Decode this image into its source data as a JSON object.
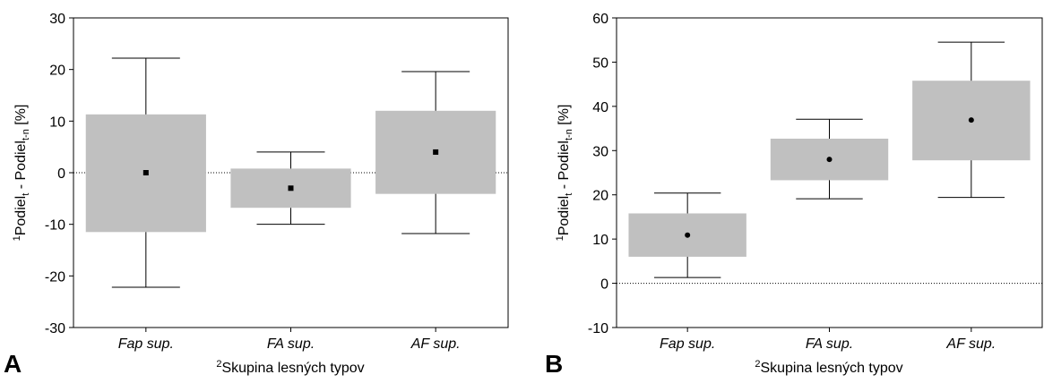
{
  "chart_data": [
    {
      "type": "box",
      "panel_label": "A",
      "categories": [
        "Fap sup.",
        "FA sup.",
        "AF sup."
      ],
      "boxes": [
        {
          "mean": 0,
          "box_low": -11.5,
          "box_high": 11.3,
          "whisker_low": -22.2,
          "whisker_high": 22.2
        },
        {
          "mean": -3,
          "box_low": -6.8,
          "box_high": 0.8,
          "whisker_low": -10,
          "whisker_high": 4
        },
        {
          "mean": 4,
          "box_low": -4.1,
          "box_high": 12,
          "whisker_low": -11.8,
          "whisker_high": 19.6
        }
      ],
      "ylim": [
        -30,
        30
      ],
      "yticks": [
        "-30",
        "-20",
        "-10",
        "0",
        "10",
        "20",
        "30"
      ],
      "marker": "square",
      "reference_line": 0,
      "xlabel": {
        "sup": "2",
        "text": "Skupina lesných typov"
      },
      "ylabel": {
        "sup": "1",
        "p1": "Podiel",
        "s1": "t",
        "mid": " - Podiel",
        "s2": "t-n",
        "end": " [%]"
      }
    },
    {
      "type": "box",
      "panel_label": "B",
      "categories": [
        "Fap sup.",
        "FA sup.",
        "AF sup."
      ],
      "boxes": [
        {
          "mean": 10.9,
          "box_low": 6,
          "box_high": 15.8,
          "whisker_low": 1.3,
          "whisker_high": 20.4
        },
        {
          "mean": 28,
          "box_low": 23.3,
          "box_high": 32.7,
          "whisker_low": 19.1,
          "whisker_high": 37.1
        },
        {
          "mean": 36.9,
          "box_low": 27.8,
          "box_high": 45.8,
          "whisker_low": 19.4,
          "whisker_high": 54.5
        }
      ],
      "ylim": [
        -10,
        60
      ],
      "yticks": [
        "-10",
        "0",
        "10",
        "20",
        "30",
        "40",
        "50",
        "60"
      ],
      "marker": "circle",
      "reference_line": 0,
      "xlabel": {
        "sup": "2",
        "text": "Skupina lesných typov"
      },
      "ylabel": {
        "sup": "1",
        "p1": "Podiel",
        "s1": "t",
        "mid": " - Podiel",
        "s2": "t-n",
        "end": " [%]"
      }
    }
  ],
  "colors": {
    "box_fill": "#c0c0c0",
    "line": "#000000"
  }
}
